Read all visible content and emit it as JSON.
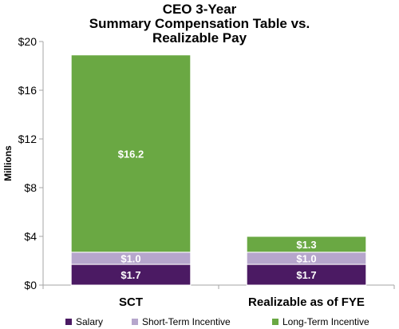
{
  "colors": {
    "salary": "#4b1a63",
    "short_term_incentive": "#b6a6cc",
    "long_term_incentive": "#6aa843",
    "axis": "#a6a6a6",
    "label_text": "#ffffff"
  },
  "chart_data": {
    "type": "bar",
    "stacked": true,
    "title_lines": [
      "CEO 3-Year",
      "Summary Compensation Table vs.",
      "Realizable Pay"
    ],
    "xlabel": "",
    "ylabel": "Millions",
    "ylim": [
      0,
      20
    ],
    "yticks": [
      0,
      4,
      8,
      12,
      16,
      20
    ],
    "ytick_labels": [
      "$0",
      "$4",
      "$8",
      "$12",
      "$16",
      "$20"
    ],
    "categories": [
      "SCT",
      "Realizable as of FYE"
    ],
    "grid": false,
    "legend_position": "bottom",
    "series": [
      {
        "name": "Salary",
        "values": [
          1.7,
          1.7
        ],
        "labels": [
          "$1.7",
          "$1.7"
        ],
        "color": "#4b1a63"
      },
      {
        "name": "Short-Term Incentive",
        "values": [
          1.0,
          1.0
        ],
        "labels": [
          "$1.0",
          "$1.0"
        ],
        "color": "#b6a6cc"
      },
      {
        "name": "Long-Term Incentive",
        "values": [
          16.2,
          1.3
        ],
        "labels": [
          "$16.2",
          "$1.3"
        ],
        "color": "#6aa843"
      }
    ]
  }
}
